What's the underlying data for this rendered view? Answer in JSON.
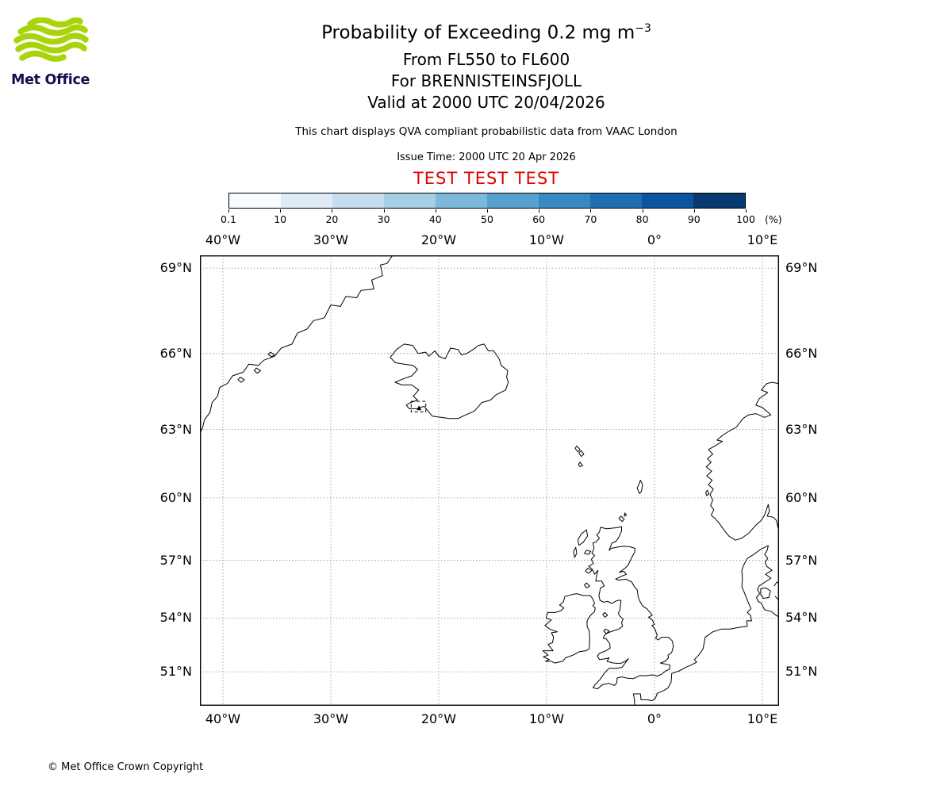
{
  "logo": {
    "text": "Met Office",
    "green": "#a9d40b",
    "navy": "#11114e"
  },
  "header": {
    "title_prefix": "Probability of Exceeding 0.2 mg m",
    "title_superscript": "−3",
    "flight_levels": "From FL550 to FL600",
    "volcano_line": "For BRENNISTEINSFJOLL",
    "valid_line": "Valid at 2000 UTC 20/04/2026",
    "qva_note": "This chart displays QVA compliant probabilistic data from VAAC London",
    "issue_time": "Issue Time: 2000 UTC 20 Apr 2026",
    "test_banner": "TEST TEST TEST",
    "test_color": "#e00000"
  },
  "colorbar": {
    "ticks": [
      "0.1",
      "10",
      "20",
      "30",
      "40",
      "50",
      "60",
      "70",
      "80",
      "90",
      "100"
    ],
    "unit": "(%)",
    "colors": [
      "#f7fbff",
      "#dfecf7",
      "#c8dcf0",
      "#a6cee4",
      "#7db8da",
      "#58a1cf",
      "#3888c1",
      "#1f6eb3",
      "#0b559f",
      "#083970"
    ]
  },
  "map": {
    "lon_ticks": [
      {
        "label": "40°W",
        "lon": -40
      },
      {
        "label": "30°W",
        "lon": -30
      },
      {
        "label": "20°W",
        "lon": -20
      },
      {
        "label": "10°W",
        "lon": -10
      },
      {
        "label": "0°",
        "lon": 0
      },
      {
        "label": "10°E",
        "lon": 10
      }
    ],
    "lat_ticks": [
      {
        "label": "69°N",
        "lat": 69
      },
      {
        "label": "66°N",
        "lat": 66
      },
      {
        "label": "63°N",
        "lat": 63
      },
      {
        "label": "60°N",
        "lat": 60
      },
      {
        "label": "57°N",
        "lat": 57
      },
      {
        "label": "54°N",
        "lat": 54
      },
      {
        "label": "51°N",
        "lat": 51
      }
    ],
    "volcano_box": {
      "lon_min": -22.55,
      "lon_max": -21.2,
      "lat_min": 63.72,
      "lat_max": 64.15
    }
  },
  "footer": {
    "copyright": "© Met Office Crown Copyright"
  }
}
